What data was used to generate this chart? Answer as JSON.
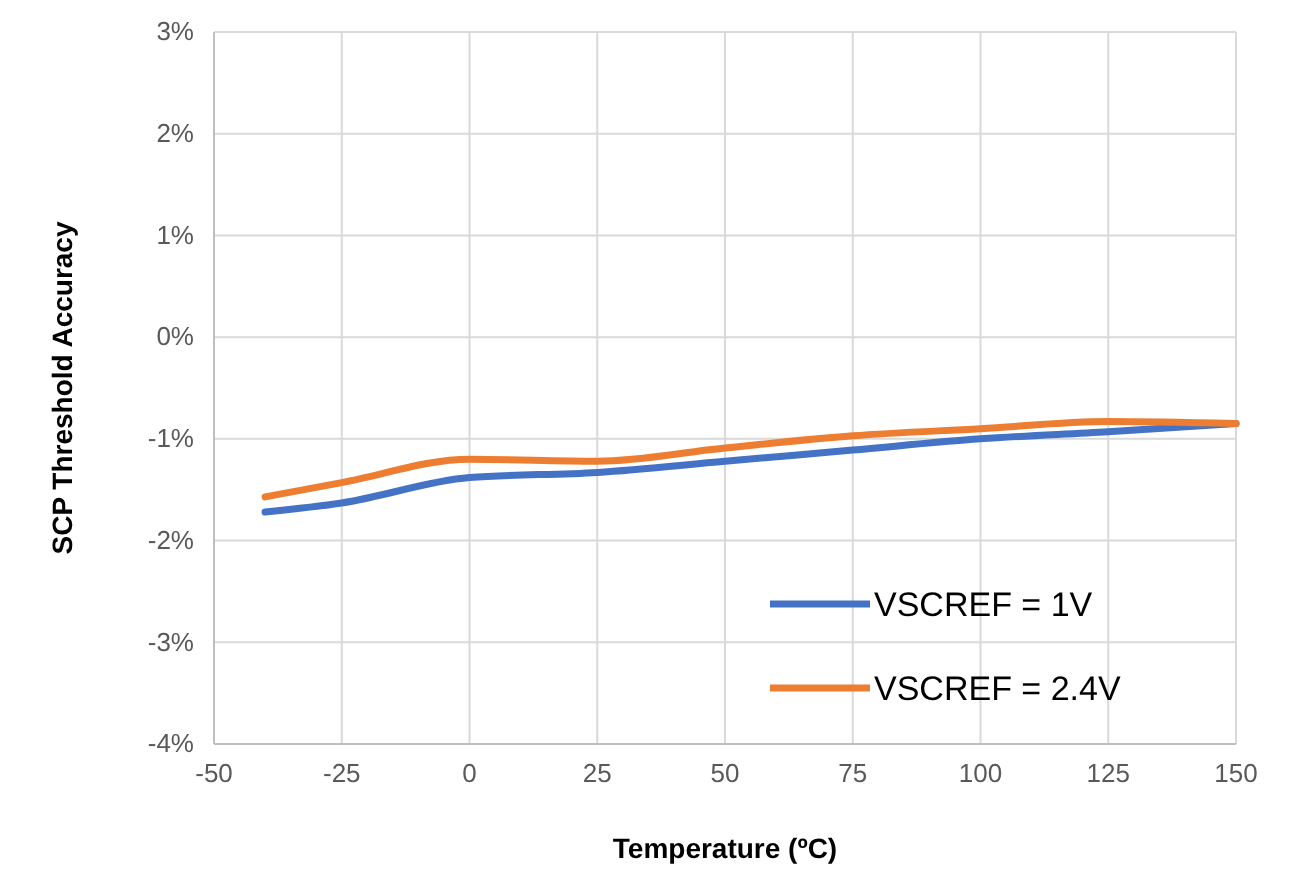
{
  "chart_data": {
    "type": "line",
    "xlabel": "Temperature (ºC)",
    "ylabel": "SCP Threshold Accuracy",
    "x": [
      -40,
      -25,
      0,
      25,
      50,
      75,
      100,
      125,
      150
    ],
    "series": [
      {
        "name": "VSCREF = 1V",
        "color": "#4472c4",
        "values": [
          -1.72,
          -1.63,
          -1.38,
          -1.33,
          -1.22,
          -1.11,
          -1.0,
          -0.93,
          -0.85
        ]
      },
      {
        "name": "VSCREF = 2.4V",
        "color": "#ed7d31",
        "values": [
          -1.57,
          -1.43,
          -1.2,
          -1.22,
          -1.09,
          -0.97,
          -0.9,
          -0.83,
          -0.85
        ]
      }
    ],
    "xlim": [
      -50,
      150
    ],
    "xticks": [
      -50,
      -25,
      0,
      25,
      50,
      75,
      100,
      125,
      150
    ],
    "ylim": [
      -4,
      3
    ],
    "yticks": [
      {
        "value": -4,
        "label": "-4%"
      },
      {
        "value": -3,
        "label": "-3%"
      },
      {
        "value": -2,
        "label": "-2%"
      },
      {
        "value": -1,
        "label": "-1%"
      },
      {
        "value": 0,
        "label": "0%"
      },
      {
        "value": 1,
        "label": "1%"
      },
      {
        "value": 2,
        "label": "2%"
      },
      {
        "value": 3,
        "label": "3%"
      }
    ],
    "grid": true,
    "legend": "bottom right",
    "marker": "none",
    "line_style": "solid"
  }
}
